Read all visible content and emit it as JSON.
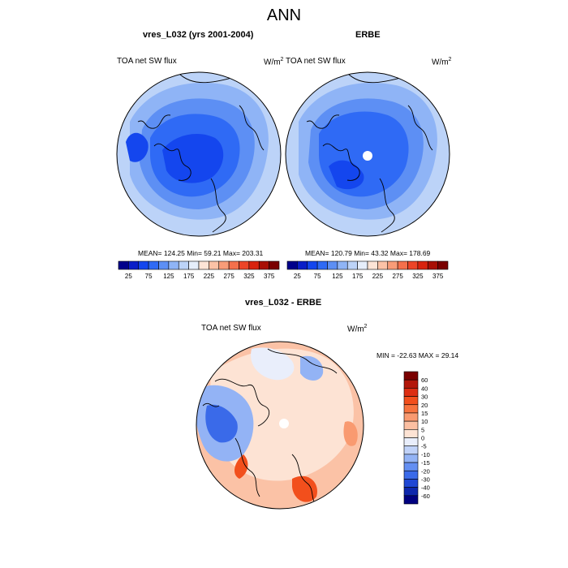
{
  "figure_title": "ANN",
  "panels": [
    {
      "title": "vres_L032 (yrs 2001-2004)",
      "left_label": "TOA net SW flux",
      "units": "W/m",
      "units_exp": "2",
      "stats": "MEAN= 124.25  Min=  59.21  Max= 203.31"
    },
    {
      "title": "ERBE",
      "left_label": "TOA net SW flux",
      "units": "W/m",
      "units_exp": "2",
      "stats": "MEAN= 120.79  Min=  43.32  Max= 178.69"
    },
    {
      "title": "vres_L032 - ERBE",
      "left_label": "TOA net SW flux",
      "units": "W/m",
      "units_exp": "2",
      "stats": "MIN = -22.63 MAX =  29.14"
    }
  ],
  "colorbar_top": {
    "labels": [
      "25",
      "75",
      "125",
      "175",
      "225",
      "275",
      "325",
      "375"
    ],
    "colors": [
      "#00008b",
      "#0a1ec8",
      "#1446ee",
      "#2f6af5",
      "#5d8ff4",
      "#8fb4f6",
      "#bcd3f8",
      "#e6eefb",
      "#fde4d6",
      "#fbc2a6",
      "#f89c78",
      "#f4704c",
      "#ec4427",
      "#d9230e",
      "#a80f04",
      "#7a0000"
    ]
  },
  "colorbar_diff": {
    "labels": [
      "60",
      "40",
      "30",
      "20",
      "15",
      "10",
      "5",
      "0",
      "-5",
      "-10",
      "-15",
      "-20",
      "-30",
      "-40",
      "-60"
    ],
    "colors": [
      "#7a0000",
      "#b3170a",
      "#dd2e12",
      "#f24f1c",
      "#f7733e",
      "#f99a70",
      "#fbbfa2",
      "#fde3d4",
      "#e9eefb",
      "#c0d2f8",
      "#93b3f5",
      "#648ff2",
      "#3a6ae9",
      "#1f47d4",
      "#0d27ad",
      "#000080"
    ]
  },
  "map_colors": {
    "top_left": {
      "outer": "#bcd3f8",
      "mid": "#8fb4f6",
      "inner": "#5d8ff4",
      "core": "#2f6af5",
      "deep": "#1446ee"
    },
    "top_right": {
      "outer": "#bcd3f8",
      "mid": "#8fb4f6",
      "inner": "#5d8ff4",
      "core": "#2f6af5",
      "deep": "#1446ee",
      "pole": "#ffffff"
    },
    "diff": {
      "base": "#fbc2a6",
      "light": "#fde3d4",
      "pale": "#e9eefb",
      "blue": "#93b3f5",
      "bluedeep": "#3a6ae9",
      "red": "#f24f1c",
      "redpale": "#f99a70"
    }
  }
}
